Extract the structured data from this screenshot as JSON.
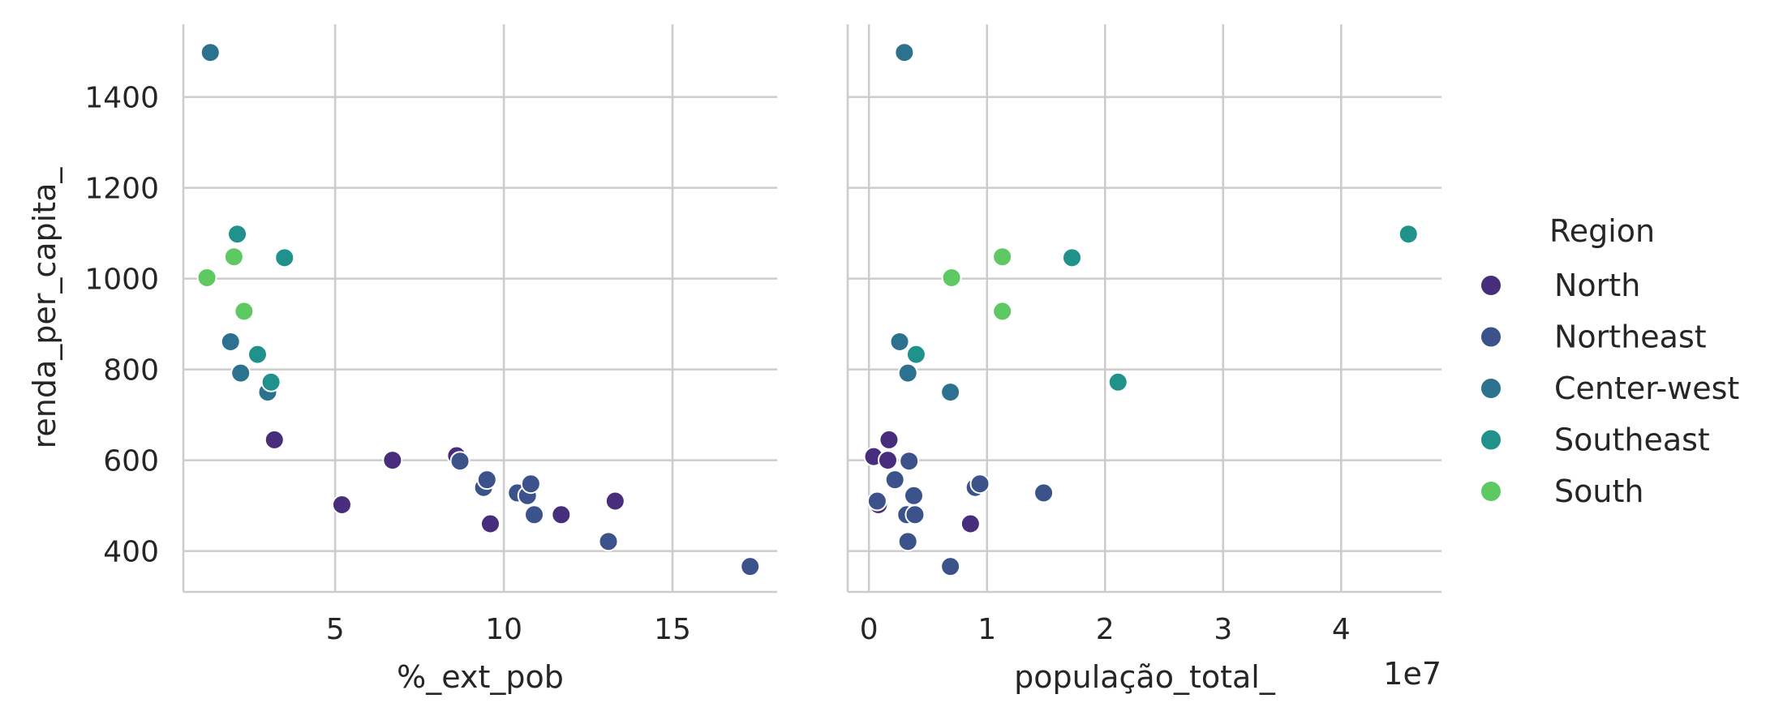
{
  "chart_data": {
    "type": "scatter",
    "legend": {
      "title": "Region",
      "placement": "right",
      "entries": [
        {
          "name": "North",
          "color": "#472d7b"
        },
        {
          "name": "Northeast",
          "color": "#3b528b"
        },
        {
          "name": "Center-west",
          "color": "#2c728e"
        },
        {
          "name": "Southeast",
          "color": "#21918c"
        },
        {
          "name": "South",
          "color": "#5ec962"
        }
      ]
    },
    "grid": true,
    "panels": [
      {
        "xlabel": "%_ext_pob",
        "ylabel": "renda_per_capita_",
        "xlim": [
          0.5,
          18.1
        ],
        "ylim": [
          310,
          1560
        ],
        "xticks": [
          5,
          10,
          15
        ],
        "xtick_labels": [
          "5",
          "10",
          "15"
        ],
        "yticks": [
          400,
          600,
          800,
          1000,
          1200,
          1400
        ],
        "ytick_labels": [
          "400",
          "600",
          "800",
          "1000",
          "1200",
          "1400"
        ],
        "series": [
          {
            "name": "North",
            "x": [
              3.2,
              5.2,
              6.7,
              8.6,
              9.6,
              11.7,
              13.3
            ],
            "y": [
              645,
              502,
              600,
              610,
              460,
              480,
              510
            ]
          },
          {
            "name": "Northeast",
            "x": [
              8.7,
              9.4,
              9.5,
              10.4,
              10.7,
              10.8,
              10.9,
              13.1,
              17.3
            ],
            "y": [
              598,
              540,
              557,
              528,
              522,
              548,
              480,
              421,
              366
            ]
          },
          {
            "name": "Center-west",
            "x": [
              1.3,
              1.9,
              2.2,
              3.0
            ],
            "y": [
              1498,
              861,
              792,
              750
            ]
          },
          {
            "name": "Southeast",
            "x": [
              2.1,
              2.7,
              3.1,
              3.5
            ],
            "y": [
              1098,
              833,
              772,
              1046
            ]
          },
          {
            "name": "South",
            "x": [
              1.2,
              2.0,
              2.3
            ],
            "y": [
              1002,
              1048,
              928
            ]
          }
        ]
      },
      {
        "xlabel": "população_total_",
        "offset_label": "1e7",
        "ylabel": "",
        "xlim": [
          -0.18,
          4.85
        ],
        "ylim": [
          310,
          1560
        ],
        "xticks": [
          0,
          1,
          2,
          3,
          4
        ],
        "xtick_labels": [
          "0",
          "1",
          "2",
          "3",
          "4"
        ],
        "series": [
          {
            "name": "North",
            "x": [
              0.04,
              0.08,
              0.16,
              0.17,
              0.38,
              0.86
            ],
            "y": [
              608,
              502,
              600,
              645,
              480,
              460
            ]
          },
          {
            "name": "Northeast",
            "x": [
              0.07,
              0.22,
              0.32,
              0.33,
              0.34,
              0.38,
              0.39,
              0.69,
              0.9,
              0.94,
              1.48
            ],
            "y": [
              510,
              557,
              480,
              421,
              598,
              522,
              480,
              366,
              540,
              548,
              528
            ]
          },
          {
            "name": "Center-west",
            "x": [
              0.26,
              0.3,
              0.33,
              0.69
            ],
            "y": [
              861,
              1498,
              792,
              750
            ]
          },
          {
            "name": "Southeast",
            "x": [
              0.4,
              1.72,
              2.11,
              4.57
            ],
            "y": [
              833,
              1046,
              772,
              1098
            ]
          },
          {
            "name": "South",
            "x": [
              0.7,
              1.13,
              1.13
            ],
            "y": [
              1002,
              1048,
              928
            ]
          }
        ]
      }
    ]
  }
}
